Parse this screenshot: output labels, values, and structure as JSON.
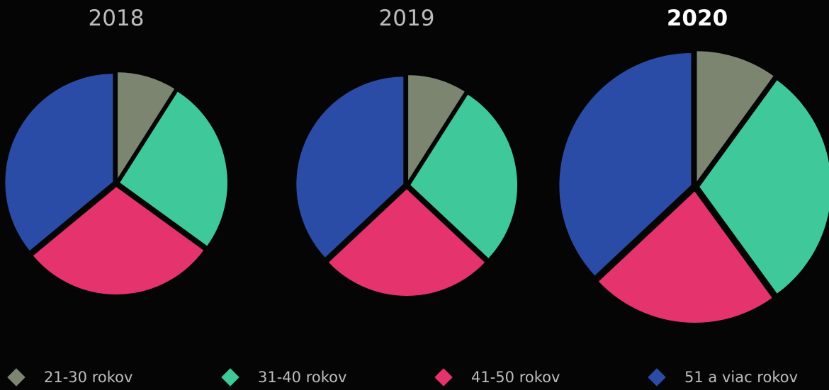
{
  "chart_data": [
    {
      "type": "pie",
      "title": "2018",
      "title_bold": false,
      "categories": [
        "21-30 rokov",
        "31-40 rokov",
        "41-50 rokov",
        "51 a viac rokov"
      ],
      "values": [
        9,
        26,
        29,
        36
      ]
    },
    {
      "type": "pie",
      "title": "2019",
      "title_bold": false,
      "categories": [
        "21-30 rokov",
        "31-40 rokov",
        "41-50 rokov",
        "51 a viac rokov"
      ],
      "values": [
        9,
        28,
        26,
        37
      ]
    },
    {
      "type": "pie",
      "title": "2020",
      "title_bold": true,
      "categories": [
        "21-30 rokov",
        "31-40 rokov",
        "41-50 rokov",
        "51 a viac rokov"
      ],
      "values": [
        10,
        30,
        23,
        37
      ]
    }
  ],
  "legend": [
    {
      "label": "21-30 rokov",
      "color": "#7b8570"
    },
    {
      "label": "31-40 rokov",
      "color": "#3fc99b"
    },
    {
      "label": "41-50 rokov",
      "color": "#e5336e"
    },
    {
      "label": "51 a viac rokov",
      "color": "#2b4ca6"
    }
  ]
}
